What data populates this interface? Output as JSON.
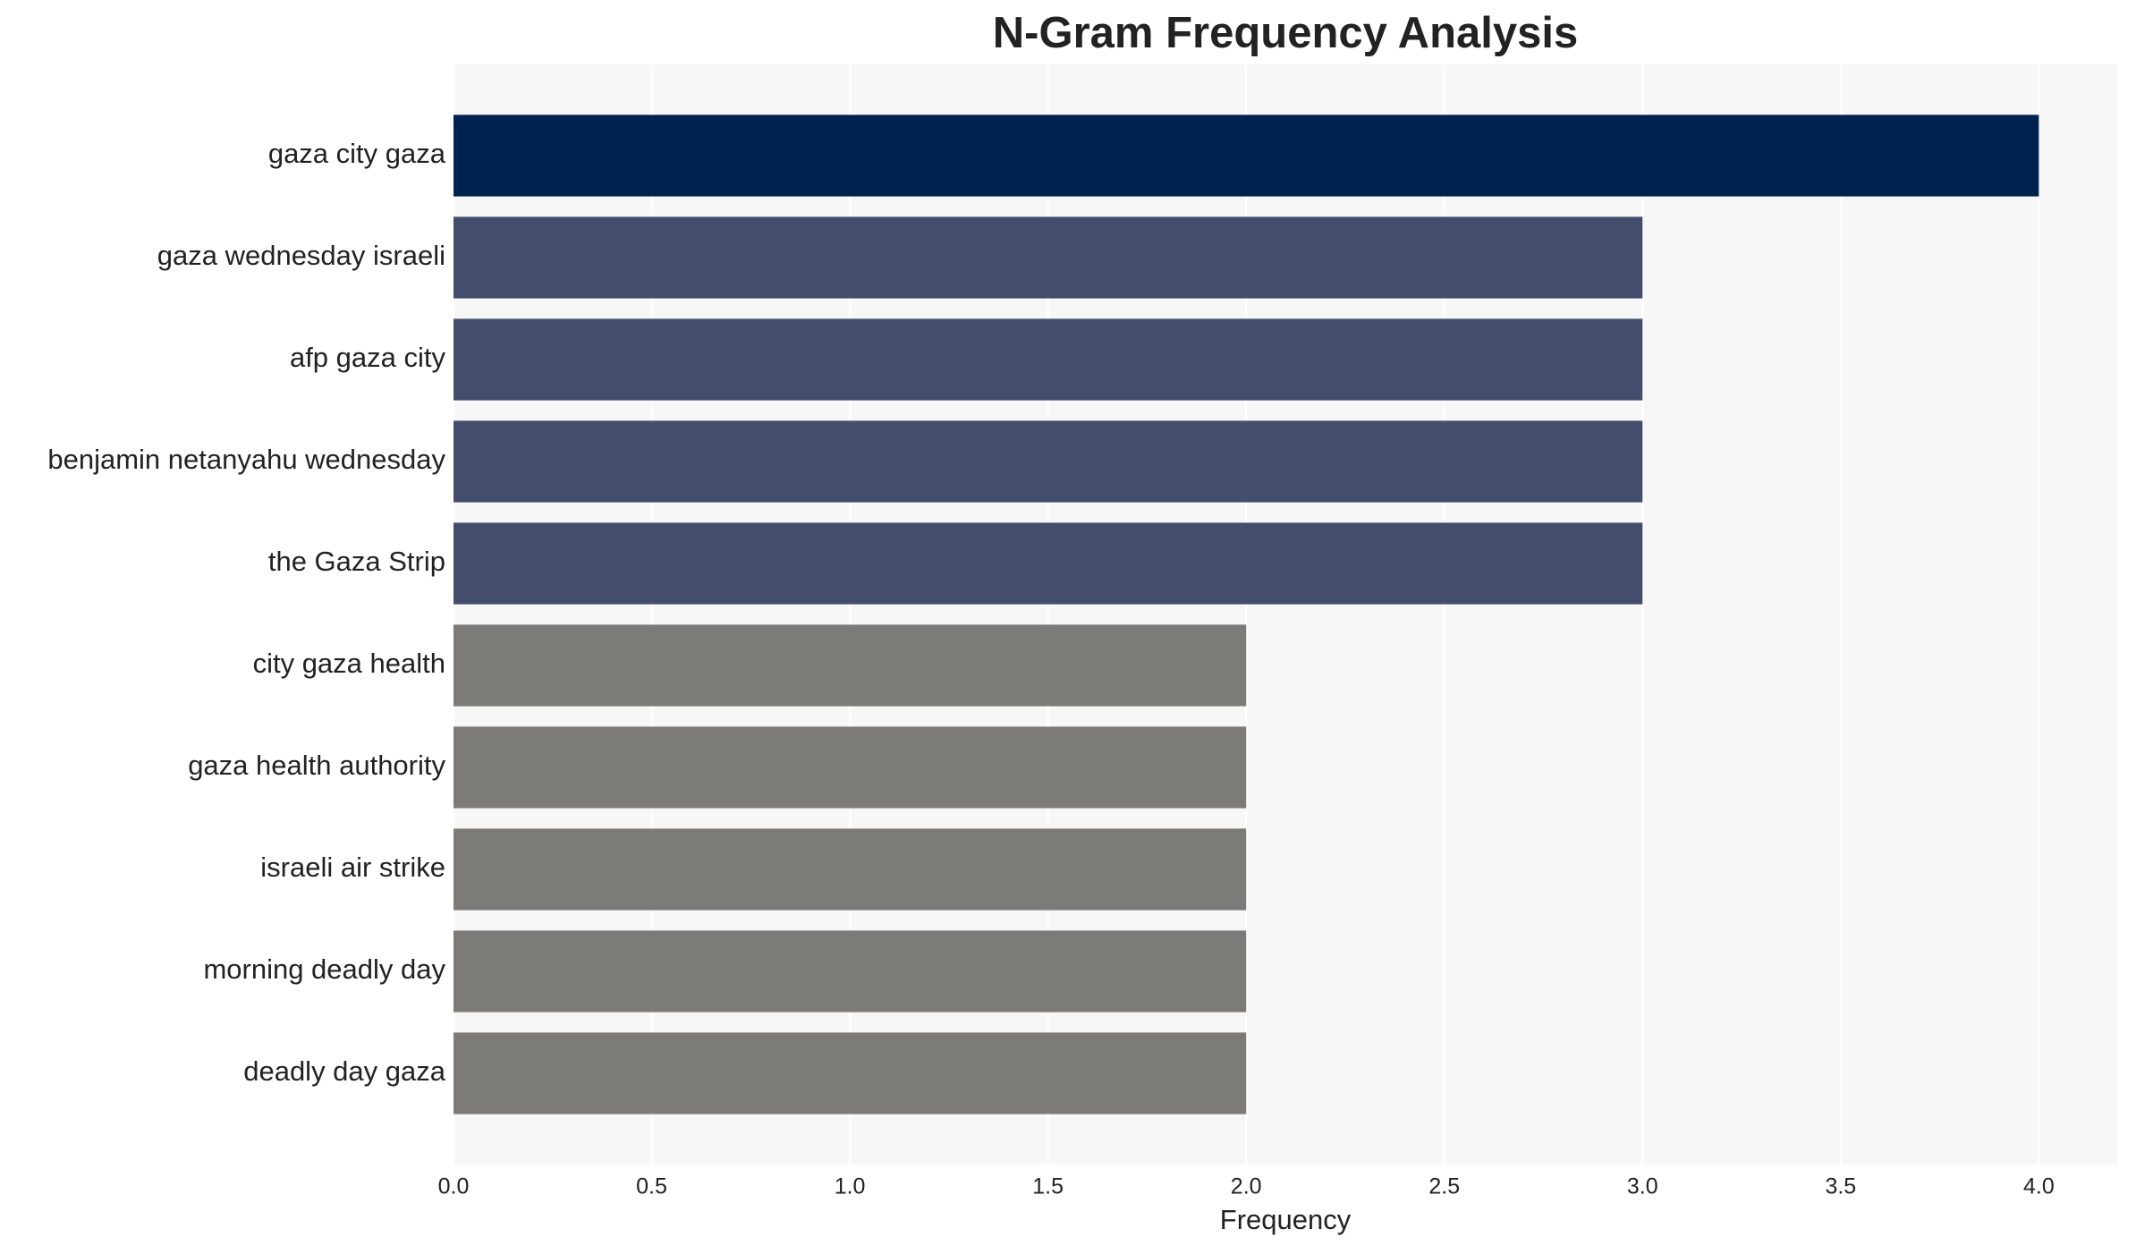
{
  "chart_data": {
    "type": "hbar",
    "title": "N-Gram Frequency Analysis",
    "x_label": "Frequency",
    "categories": [
      "gaza city gaza",
      "gaza wednesday israeli",
      "afp gaza city",
      "benjamin netanyahu wednesday",
      "the Gaza Strip",
      "city gaza health",
      "gaza health authority",
      "israeli air strike",
      "morning deadly day",
      "deadly day gaza"
    ],
    "values": [
      4,
      3,
      3,
      3,
      3,
      2,
      2,
      2,
      2,
      2
    ],
    "colors": [
      "#00224e",
      "#434e6c",
      "#434e6c",
      "#434e6c",
      "#434e6c",
      "#7c7b78",
      "#7c7b78",
      "#7c7b78",
      "#7c7b78",
      "#7c7b78"
    ],
    "xlim": [
      0,
      4.2
    ],
    "xticks": [
      {
        "value": 0,
        "label": "0.0"
      },
      {
        "value": 0.5,
        "label": "0.5"
      },
      {
        "value": 1,
        "label": "1.0"
      },
      {
        "value": 1.5,
        "label": "1.5"
      },
      {
        "value": 2,
        "label": "2.0"
      },
      {
        "value": 2.5,
        "label": "2.5"
      },
      {
        "value": 3,
        "label": "3.0"
      },
      {
        "value": 3.5,
        "label": "3.5"
      },
      {
        "value": 4,
        "label": "4.0"
      }
    ],
    "grid": true
  }
}
